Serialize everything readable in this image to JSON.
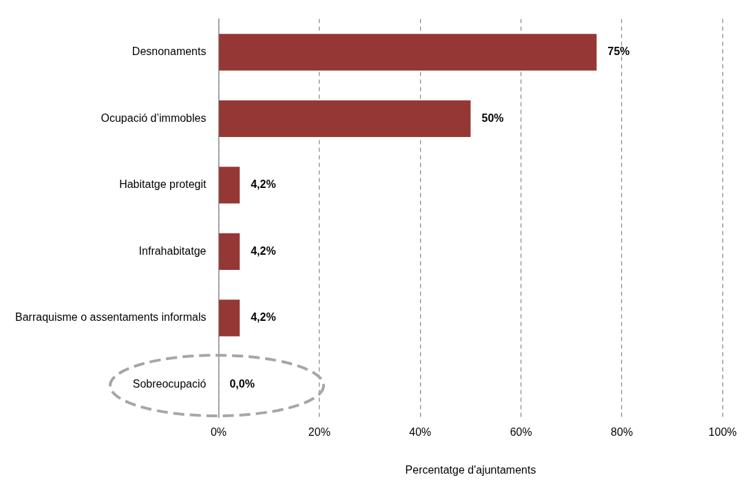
{
  "chart_data": {
    "type": "bar",
    "orientation": "horizontal",
    "xlabel": "Percentatge d'ajuntaments",
    "categories": [
      "Desnonaments",
      "Ocupació d’immobles",
      "Habitatge protegit",
      "Infrahabitatge",
      "Barraquisme o assentaments informals",
      "Sobreocupació"
    ],
    "values": [
      75,
      50,
      4.2,
      4.2,
      4.2,
      0
    ],
    "value_labels": [
      "75%",
      "50%",
      "4,2%",
      "4,2%",
      "4,2%",
      "0,0%"
    ],
    "color": "#953735",
    "xlim": [
      0,
      100
    ],
    "xticks": [
      {
        "value": 0,
        "label": "0%"
      },
      {
        "value": 20,
        "label": "20%"
      },
      {
        "value": 40,
        "label": "40%"
      },
      {
        "value": 60,
        "label": "60%"
      },
      {
        "value": 80,
        "label": "80%"
      },
      {
        "value": 100,
        "label": "100%"
      }
    ],
    "grid": "x"
  }
}
